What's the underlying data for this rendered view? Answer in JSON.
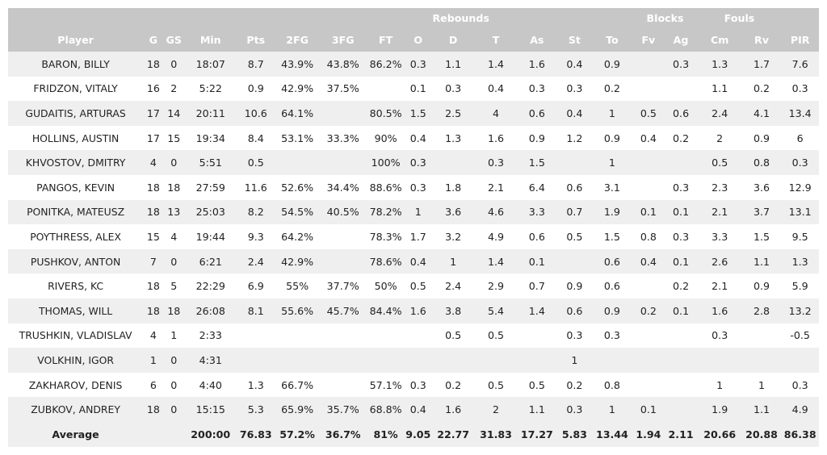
{
  "header": {
    "groups": {
      "rebounds": "Rebounds",
      "blocks": "Blocks",
      "fouls": "Fouls"
    },
    "columns": [
      "Player",
      "G",
      "GS",
      "Min",
      "Pts",
      "2FG",
      "3FG",
      "FT",
      "O",
      "D",
      "T",
      "As",
      "St",
      "To",
      "Fv",
      "Ag",
      "Cm",
      "Rv",
      "PIR"
    ]
  },
  "rows": [
    [
      "BARON, BILLY",
      "18",
      "0",
      "18:07",
      "8.7",
      "43.9%",
      "43.8%",
      "86.2%",
      "0.3",
      "1.1",
      "1.4",
      "1.6",
      "0.4",
      "0.9",
      "",
      "0.3",
      "1.3",
      "1.7",
      "7.6"
    ],
    [
      "FRIDZON, VITALY",
      "16",
      "2",
      "5:22",
      "0.9",
      "42.9%",
      "37.5%",
      "",
      "0.1",
      "0.3",
      "0.4",
      "0.3",
      "0.3",
      "0.2",
      "",
      "",
      "1.1",
      "0.2",
      "0.3"
    ],
    [
      "GUDAITIS, ARTURAS",
      "17",
      "14",
      "20:11",
      "10.6",
      "64.1%",
      "",
      "80.5%",
      "1.5",
      "2.5",
      "4",
      "0.6",
      "0.4",
      "1",
      "0.5",
      "0.6",
      "2.4",
      "4.1",
      "13.4"
    ],
    [
      "HOLLINS, AUSTIN",
      "17",
      "15",
      "19:34",
      "8.4",
      "53.1%",
      "33.3%",
      "90%",
      "0.4",
      "1.3",
      "1.6",
      "0.9",
      "1.2",
      "0.9",
      "0.4",
      "0.2",
      "2",
      "0.9",
      "6"
    ],
    [
      "KHVOSTOV, DMITRY",
      "4",
      "0",
      "5:51",
      "0.5",
      "",
      "",
      "100%",
      "0.3",
      "",
      "0.3",
      "1.5",
      "",
      "1",
      "",
      "",
      "0.5",
      "0.8",
      "0.3"
    ],
    [
      "PANGOS, KEVIN",
      "18",
      "18",
      "27:59",
      "11.6",
      "52.6%",
      "34.4%",
      "88.6%",
      "0.3",
      "1.8",
      "2.1",
      "6.4",
      "0.6",
      "3.1",
      "",
      "0.3",
      "2.3",
      "3.6",
      "12.9"
    ],
    [
      "PONITKA, MATEUSZ",
      "18",
      "13",
      "25:03",
      "8.2",
      "54.5%",
      "40.5%",
      "78.2%",
      "1",
      "3.6",
      "4.6",
      "3.3",
      "0.7",
      "1.9",
      "0.1",
      "0.1",
      "2.1",
      "3.7",
      "13.1"
    ],
    [
      "POYTHRESS, ALEX",
      "15",
      "4",
      "19:44",
      "9.3",
      "64.2%",
      "",
      "78.3%",
      "1.7",
      "3.2",
      "4.9",
      "0.6",
      "0.5",
      "1.5",
      "0.8",
      "0.3",
      "3.3",
      "1.5",
      "9.5"
    ],
    [
      "PUSHKOV, ANTON",
      "7",
      "0",
      "6:21",
      "2.4",
      "42.9%",
      "",
      "78.6%",
      "0.4",
      "1",
      "1.4",
      "0.1",
      "",
      "0.6",
      "0.4",
      "0.1",
      "2.6",
      "1.1",
      "1.3"
    ],
    [
      "RIVERS, KC",
      "18",
      "5",
      "22:29",
      "6.9",
      "55%",
      "37.7%",
      "50%",
      "0.5",
      "2.4",
      "2.9",
      "0.7",
      "0.9",
      "0.6",
      "",
      "0.2",
      "2.1",
      "0.9",
      "5.9"
    ],
    [
      "THOMAS, WILL",
      "18",
      "18",
      "26:08",
      "8.1",
      "55.6%",
      "45.7%",
      "84.4%",
      "1.6",
      "3.8",
      "5.4",
      "1.4",
      "0.6",
      "0.9",
      "0.2",
      "0.1",
      "1.6",
      "2.8",
      "13.2"
    ],
    [
      "TRUSHKIN, VLADISLAV",
      "4",
      "1",
      "2:33",
      "",
      "",
      "",
      "",
      "",
      "0.5",
      "0.5",
      "",
      "0.3",
      "0.3",
      "",
      "",
      "0.3",
      "",
      "-0.5"
    ],
    [
      "VOLKHIN, IGOR",
      "1",
      "0",
      "4:31",
      "",
      "",
      "",
      "",
      "",
      "",
      "",
      "",
      "1",
      "",
      "",
      "",
      "",
      "",
      ""
    ],
    [
      "ZAKHAROV, DENIS",
      "6",
      "0",
      "4:40",
      "1.3",
      "66.7%",
      "",
      "57.1%",
      "0.3",
      "0.2",
      "0.5",
      "0.5",
      "0.2",
      "0.8",
      "",
      "",
      "1",
      "1",
      "0.3"
    ],
    [
      "ZUBKOV, ANDREY",
      "18",
      "0",
      "15:15",
      "5.3",
      "65.9%",
      "35.7%",
      "68.8%",
      "0.4",
      "1.6",
      "2",
      "1.1",
      "0.3",
      "1",
      "0.1",
      "",
      "1.9",
      "1.1",
      "4.9"
    ]
  ],
  "average": [
    "Average",
    "",
    "",
    "200:00",
    "76.83",
    "57.2%",
    "36.7%",
    "81%",
    "9.05",
    "22.77",
    "31.83",
    "17.27",
    "5.83",
    "13.44",
    "1.94",
    "2.11",
    "20.66",
    "20.88",
    "86.38"
  ]
}
